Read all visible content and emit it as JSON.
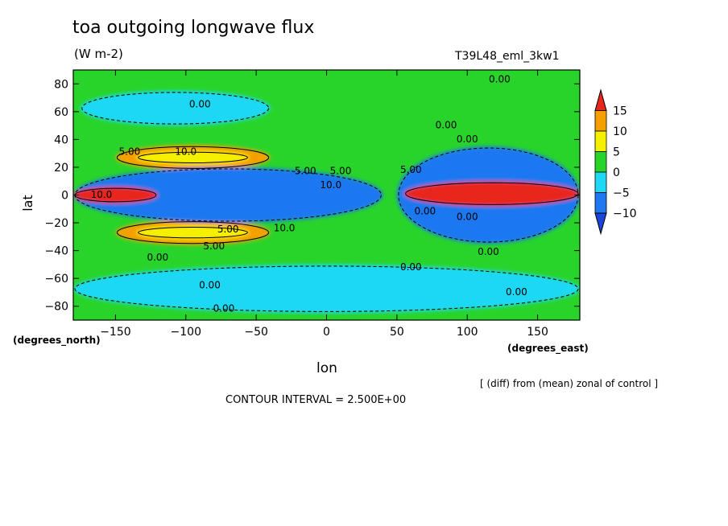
{
  "chart_data": {
    "type": "heatmap",
    "title": "toa outgoing longwave flux",
    "units": "(W m-2)",
    "run_name": "T39L48_eml_3kw1",
    "xlabel": "lon",
    "ylabel": "lat",
    "x_unit_note": "(degrees_east)",
    "y_unit_note": "(degrees_north)",
    "footnote": "[ (diff) from (mean) zonal of control ]",
    "contour_interval_text": "CONTOUR INTERVAL = 2.500E+00",
    "xlim": [
      -180,
      180
    ],
    "ylim": [
      -90,
      90
    ],
    "x_ticks": [
      -150,
      -100,
      -50,
      0,
      50,
      100,
      150
    ],
    "x_tick_labels": [
      "−150",
      "−100",
      "−50",
      "0",
      "50",
      "100",
      "150"
    ],
    "y_ticks": [
      -80,
      -60,
      -40,
      -20,
      0,
      20,
      40,
      60,
      80
    ],
    "y_tick_labels": [
      "−80",
      "−60",
      "−40",
      "−20",
      "0",
      "20",
      "40",
      "60",
      "80"
    ],
    "colorbar": {
      "levels": [
        15,
        10,
        5,
        0,
        -5,
        -10
      ],
      "labels": [
        "15",
        "10",
        "5",
        "0",
        "−5",
        "−10"
      ],
      "colors": [
        "#e8261c",
        "#f5a000",
        "#f5f000",
        "#29d42a",
        "#1fd8f5",
        "#1e78f0",
        "#1946d6"
      ]
    },
    "palette": {
      "deep_blue": "#1946d6",
      "blue": "#1e78f0",
      "cyan": "#1fd8f5",
      "green": "#29d42a",
      "yellow": "#f5f000",
      "orange": "#f5a000",
      "red": "#e8261c"
    },
    "regions": [
      {
        "name": "northern high latitude low",
        "level": "cyan",
        "lon": [
          -175,
          -40
        ],
        "lat": [
          50,
          75
        ]
      },
      {
        "name": "northern subtropical high west",
        "level": "orange",
        "lon": [
          -150,
          -40
        ],
        "lat": [
          18,
          36
        ]
      },
      {
        "name": "northern subtropical high west core",
        "level": "yellow",
        "lon": [
          -135,
          -55
        ],
        "lat": [
          22,
          32
        ]
      },
      {
        "name": "southern subtropical high west",
        "level": "orange",
        "lon": [
          -150,
          -40
        ],
        "lat": [
          -36,
          -18
        ]
      },
      {
        "name": "southern subtropical high west core",
        "level": "yellow",
        "lon": [
          -135,
          -55
        ],
        "lat": [
          -32,
          -22
        ]
      },
      {
        "name": "tropical low band west",
        "level": "blue",
        "lon": [
          -180,
          40
        ],
        "lat": [
          -20,
          20
        ]
      },
      {
        "name": "equatorial high west",
        "level": "red",
        "lon": [
          -180,
          -120
        ],
        "lat": [
          -6,
          6
        ]
      },
      {
        "name": "tropical low band east",
        "level": "blue",
        "lon": [
          50,
          180
        ],
        "lat": [
          -35,
          35
        ]
      },
      {
        "name": "equatorial high east",
        "level": "red",
        "lon": [
          55,
          180
        ],
        "lat": [
          -8,
          10
        ]
      },
      {
        "name": "southern high latitude low",
        "level": "cyan",
        "lon": [
          -180,
          180
        ],
        "lat": [
          -85,
          -50
        ]
      }
    ],
    "contour_labels": [
      {
        "text": "0.00",
        "lon": -90,
        "lat": 65
      },
      {
        "text": "0.00",
        "lon": 123,
        "lat": 83
      },
      {
        "text": "0.00",
        "lon": 85,
        "lat": 50
      },
      {
        "text": "0.00",
        "lon": 100,
        "lat": 40
      },
      {
        "text": "5.00",
        "lon": -140,
        "lat": 31
      },
      {
        "text": "10.0",
        "lon": -100,
        "lat": 31
      },
      {
        "text": "5.00",
        "lon": -15,
        "lat": 17
      },
      {
        "text": "5.00",
        "lon": 10,
        "lat": 17
      },
      {
        "text": "5.00",
        "lon": 60,
        "lat": 18
      },
      {
        "text": "10.0",
        "lon": 3,
        "lat": 7
      },
      {
        "text": "5.00",
        "lon": -70,
        "lat": -25
      },
      {
        "text": "10.0",
        "lon": -30,
        "lat": -24
      },
      {
        "text": "10.0",
        "lon": -160,
        "lat": 0
      },
      {
        "text": "5.00",
        "lon": -80,
        "lat": -37
      },
      {
        "text": "0.00",
        "lon": -120,
        "lat": -45
      },
      {
        "text": "0.00",
        "lon": 60,
        "lat": -52
      },
      {
        "text": "0.00",
        "lon": -83,
        "lat": -65
      },
      {
        "text": "0.00",
        "lon": 135,
        "lat": -70
      },
      {
        "text": "0.00",
        "lon": -73,
        "lat": -82
      },
      {
        "text": "0.00",
        "lon": 115,
        "lat": -41
      },
      {
        "text": "0.00",
        "lon": 70,
        "lat": -12
      },
      {
        "text": "0.00",
        "lon": 100,
        "lat": -16
      }
    ]
  }
}
